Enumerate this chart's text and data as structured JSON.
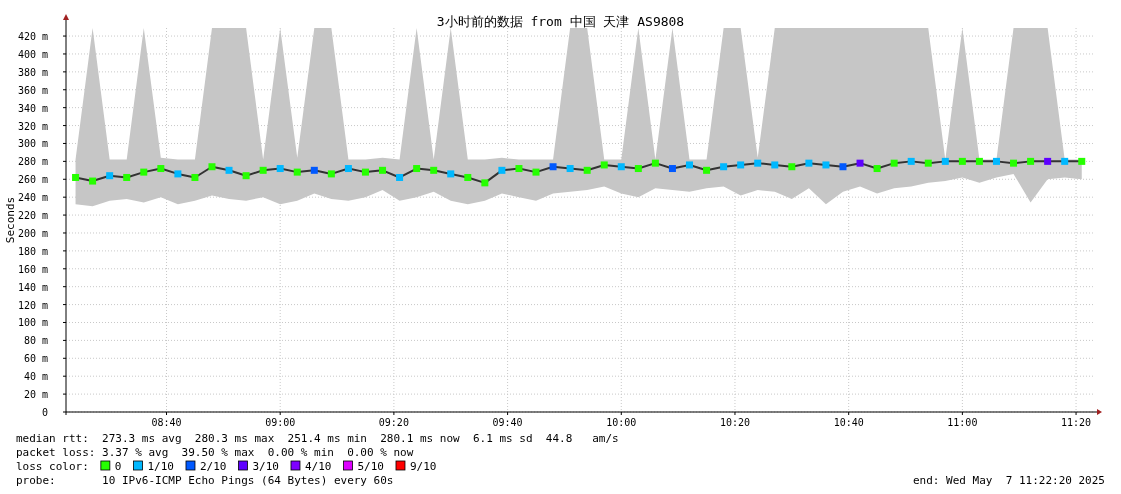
{
  "chart_data": {
    "type": "scatter",
    "title": "3小时前的数据 from 中国 天津 AS9808",
    "ylabel": "Seconds",
    "legend_title": "loss color:",
    "legend": "bottom",
    "grid": true,
    "marker": "square",
    "xlim": [
      8.372,
      11.383
    ],
    "ylim": [
      0,
      429
    ],
    "xticks": [
      {
        "value": 8.6667,
        "label": "08:40"
      },
      {
        "value": 9,
        "label": "09:00"
      },
      {
        "value": 9.3333,
        "label": "09:20"
      },
      {
        "value": 9.6667,
        "label": "09:40"
      },
      {
        "value": 10,
        "label": "10:00"
      },
      {
        "value": 10.3333,
        "label": "10:20"
      },
      {
        "value": 10.6667,
        "label": "10:40"
      },
      {
        "value": 11,
        "label": "11:00"
      },
      {
        "value": 11.3333,
        "label": "11:20"
      }
    ],
    "yticks": [
      {
        "value": 0,
        "label": "0"
      },
      {
        "value": 20,
        "label": "20 m"
      },
      {
        "value": 40,
        "label": "40 m"
      },
      {
        "value": 60,
        "label": "60 m"
      },
      {
        "value": 80,
        "label": "80 m"
      },
      {
        "value": 100,
        "label": "100 m"
      },
      {
        "value": 120,
        "label": "120 m"
      },
      {
        "value": 140,
        "label": "140 m"
      },
      {
        "value": 160,
        "label": "160 m"
      },
      {
        "value": 180,
        "label": "180 m"
      },
      {
        "value": 200,
        "label": "200 m"
      },
      {
        "value": 220,
        "label": "220 m"
      },
      {
        "value": 240,
        "label": "240 m"
      },
      {
        "value": 260,
        "label": "260 m"
      },
      {
        "value": 280,
        "label": "280 m"
      },
      {
        "value": 300,
        "label": "300 m"
      },
      {
        "value": 320,
        "label": "320 m"
      },
      {
        "value": 340,
        "label": "340 m"
      },
      {
        "value": 360,
        "label": "360 m"
      },
      {
        "value": 380,
        "label": "380 m"
      },
      {
        "value": 400,
        "label": "400 m"
      },
      {
        "value": 420,
        "label": "420 m"
      }
    ],
    "x": [
      8.4,
      8.45,
      8.5,
      8.55,
      8.6,
      8.65,
      8.7,
      8.75,
      8.8,
      8.85,
      8.9,
      8.95,
      9.0,
      9.05,
      9.1,
      9.15,
      9.2,
      9.25,
      9.3,
      9.35,
      9.4,
      9.45,
      9.5,
      9.55,
      9.6,
      9.65,
      9.7,
      9.75,
      9.8,
      9.85,
      9.9,
      9.95,
      10.0,
      10.05,
      10.1,
      10.15,
      10.2,
      10.25,
      10.3,
      10.35,
      10.4,
      10.45,
      10.5,
      10.55,
      10.6,
      10.65,
      10.7,
      10.75,
      10.8,
      10.85,
      10.9,
      10.95,
      11.0,
      11.05,
      11.1,
      11.15,
      11.2,
      11.25,
      11.3,
      11.35
    ],
    "series": [
      {
        "type": "line",
        "marker": "none",
        "color": "#333333",
        "values": [
          262,
          258,
          264,
          262,
          268,
          272,
          266,
          262,
          274,
          270,
          264,
          270,
          272,
          268,
          270,
          266,
          272,
          268,
          270,
          262,
          272,
          270,
          266,
          262,
          256,
          270,
          272,
          268,
          274,
          272,
          270,
          276,
          274,
          272,
          278,
          272,
          276,
          270,
          274,
          276,
          278,
          276,
          274,
          278,
          276,
          274,
          278,
          272,
          278,
          280,
          278,
          280,
          280,
          280,
          280,
          278,
          280,
          280,
          280,
          280
        ],
        "lower": [
          232,
          230,
          236,
          238,
          234,
          240,
          232,
          236,
          242,
          238,
          236,
          240,
          232,
          236,
          244,
          238,
          236,
          240,
          248,
          236,
          240,
          246,
          236,
          232,
          236,
          244,
          240,
          236,
          244,
          246,
          248,
          252,
          244,
          240,
          250,
          248,
          246,
          250,
          252,
          242,
          248,
          246,
          238,
          250,
          232,
          246,
          252,
          244,
          250,
          252,
          256,
          258,
          262,
          256,
          262,
          266,
          234,
          260,
          262,
          260
        ],
        "upper": [
          282,
          429,
          282,
          282,
          429,
          284,
          282,
          282,
          429,
          429,
          429,
          282,
          429,
          284,
          429,
          429,
          282,
          282,
          284,
          282,
          429,
          282,
          429,
          282,
          282,
          284,
          282,
          282,
          282,
          429,
          429,
          282,
          282,
          429,
          282,
          429,
          282,
          282,
          429,
          429,
          284,
          429,
          429,
          429,
          429,
          429,
          429,
          429,
          429,
          429,
          429,
          282,
          429,
          282,
          282,
          429,
          429,
          429,
          282,
          282
        ]
      },
      {
        "name": "0",
        "color": "#26ff00",
        "values": [
          262,
          258,
          null,
          262,
          268,
          272,
          null,
          262,
          274,
          null,
          264,
          270,
          null,
          268,
          null,
          266,
          null,
          268,
          270,
          null,
          272,
          270,
          null,
          262,
          256,
          null,
          272,
          268,
          null,
          null,
          270,
          276,
          null,
          272,
          278,
          null,
          null,
          270,
          null,
          null,
          null,
          null,
          274,
          null,
          null,
          null,
          null,
          272,
          278,
          null,
          278,
          null,
          280,
          280,
          null,
          278,
          280,
          null,
          null,
          280
        ]
      },
      {
        "name": "1/10",
        "color": "#00b8ff",
        "values": [
          null,
          null,
          264,
          null,
          null,
          null,
          266,
          null,
          null,
          270,
          null,
          null,
          272,
          null,
          null,
          null,
          272,
          null,
          null,
          262,
          null,
          null,
          266,
          null,
          null,
          270,
          null,
          null,
          null,
          272,
          null,
          null,
          274,
          null,
          null,
          null,
          276,
          null,
          274,
          276,
          278,
          276,
          null,
          278,
          276,
          null,
          null,
          null,
          null,
          280,
          null,
          280,
          null,
          null,
          280,
          null,
          null,
          null,
          280,
          null
        ]
      },
      {
        "name": "2/10",
        "color": "#0059ff",
        "values": [
          null,
          null,
          null,
          null,
          null,
          null,
          null,
          null,
          null,
          null,
          null,
          null,
          null,
          null,
          270,
          null,
          null,
          null,
          null,
          null,
          null,
          null,
          null,
          null,
          null,
          null,
          null,
          null,
          274,
          null,
          null,
          null,
          null,
          null,
          null,
          272,
          null,
          null,
          null,
          null,
          null,
          null,
          null,
          null,
          null,
          274,
          null,
          null,
          null,
          null,
          null,
          null,
          null,
          null,
          null,
          null,
          null,
          null,
          null,
          null
        ]
      },
      {
        "name": "3/10",
        "color": "#5e00ff",
        "values": [
          null,
          null,
          null,
          null,
          null,
          null,
          null,
          null,
          null,
          null,
          null,
          null,
          null,
          null,
          null,
          null,
          null,
          null,
          null,
          null,
          null,
          null,
          null,
          null,
          null,
          null,
          null,
          null,
          null,
          null,
          null,
          null,
          null,
          null,
          null,
          null,
          null,
          null,
          null,
          null,
          null,
          null,
          null,
          null,
          null,
          null,
          278,
          null,
          null,
          null,
          null,
          null,
          null,
          null,
          null,
          null,
          null,
          280,
          null,
          null
        ]
      },
      {
        "name": "4/10",
        "color": "#7e00ff",
        "values": [
          null,
          null,
          null,
          null,
          null,
          null,
          null,
          null,
          null,
          null,
          null,
          null,
          null,
          null,
          null,
          null,
          null,
          null,
          null,
          null,
          null,
          null,
          null,
          null,
          null,
          null,
          null,
          null,
          null,
          null,
          null,
          null,
          null,
          null,
          null,
          null,
          null,
          null,
          null,
          null,
          null,
          null,
          null,
          null,
          null,
          null,
          null,
          null,
          null,
          null,
          null,
          null,
          null,
          null,
          null,
          null,
          null,
          null,
          null,
          null
        ]
      },
      {
        "name": "5/10",
        "color": "#dd00ff",
        "values": [
          null,
          null,
          null,
          null,
          null,
          null,
          null,
          null,
          null,
          null,
          null,
          null,
          null,
          null,
          null,
          null,
          null,
          null,
          null,
          null,
          null,
          null,
          null,
          null,
          null,
          null,
          null,
          null,
          null,
          null,
          null,
          null,
          null,
          null,
          null,
          null,
          null,
          null,
          null,
          null,
          null,
          null,
          null,
          null,
          null,
          null,
          null,
          null,
          null,
          null,
          null,
          null,
          null,
          null,
          null,
          null,
          null,
          null,
          null,
          null
        ]
      },
      {
        "name": "9/10",
        "color": "#ff0000",
        "values": [
          null,
          null,
          null,
          null,
          null,
          null,
          null,
          null,
          null,
          null,
          null,
          null,
          null,
          null,
          null,
          null,
          null,
          null,
          null,
          null,
          null,
          null,
          null,
          null,
          null,
          null,
          null,
          null,
          null,
          null,
          null,
          null,
          null,
          null,
          null,
          null,
          null,
          null,
          null,
          null,
          null,
          null,
          null,
          null,
          null,
          null,
          null,
          null,
          null,
          null,
          null,
          null,
          null,
          null,
          null,
          null,
          null,
          null,
          null,
          null
        ]
      }
    ],
    "annotations": [
      "median rtt:  273.3 ms avg  280.3 ms max  251.4 ms min  280.1 ms now  6.1 ms sd  44.8   am/s",
      "packet loss: 3.37 % avg  39.50 % max  0.00 % min  0.00 % now",
      "probe:       10 IPv6-ICMP Echo Pings (64 Bytes) every 60s",
      "end: Wed May  7 11:22:20 2025"
    ]
  }
}
